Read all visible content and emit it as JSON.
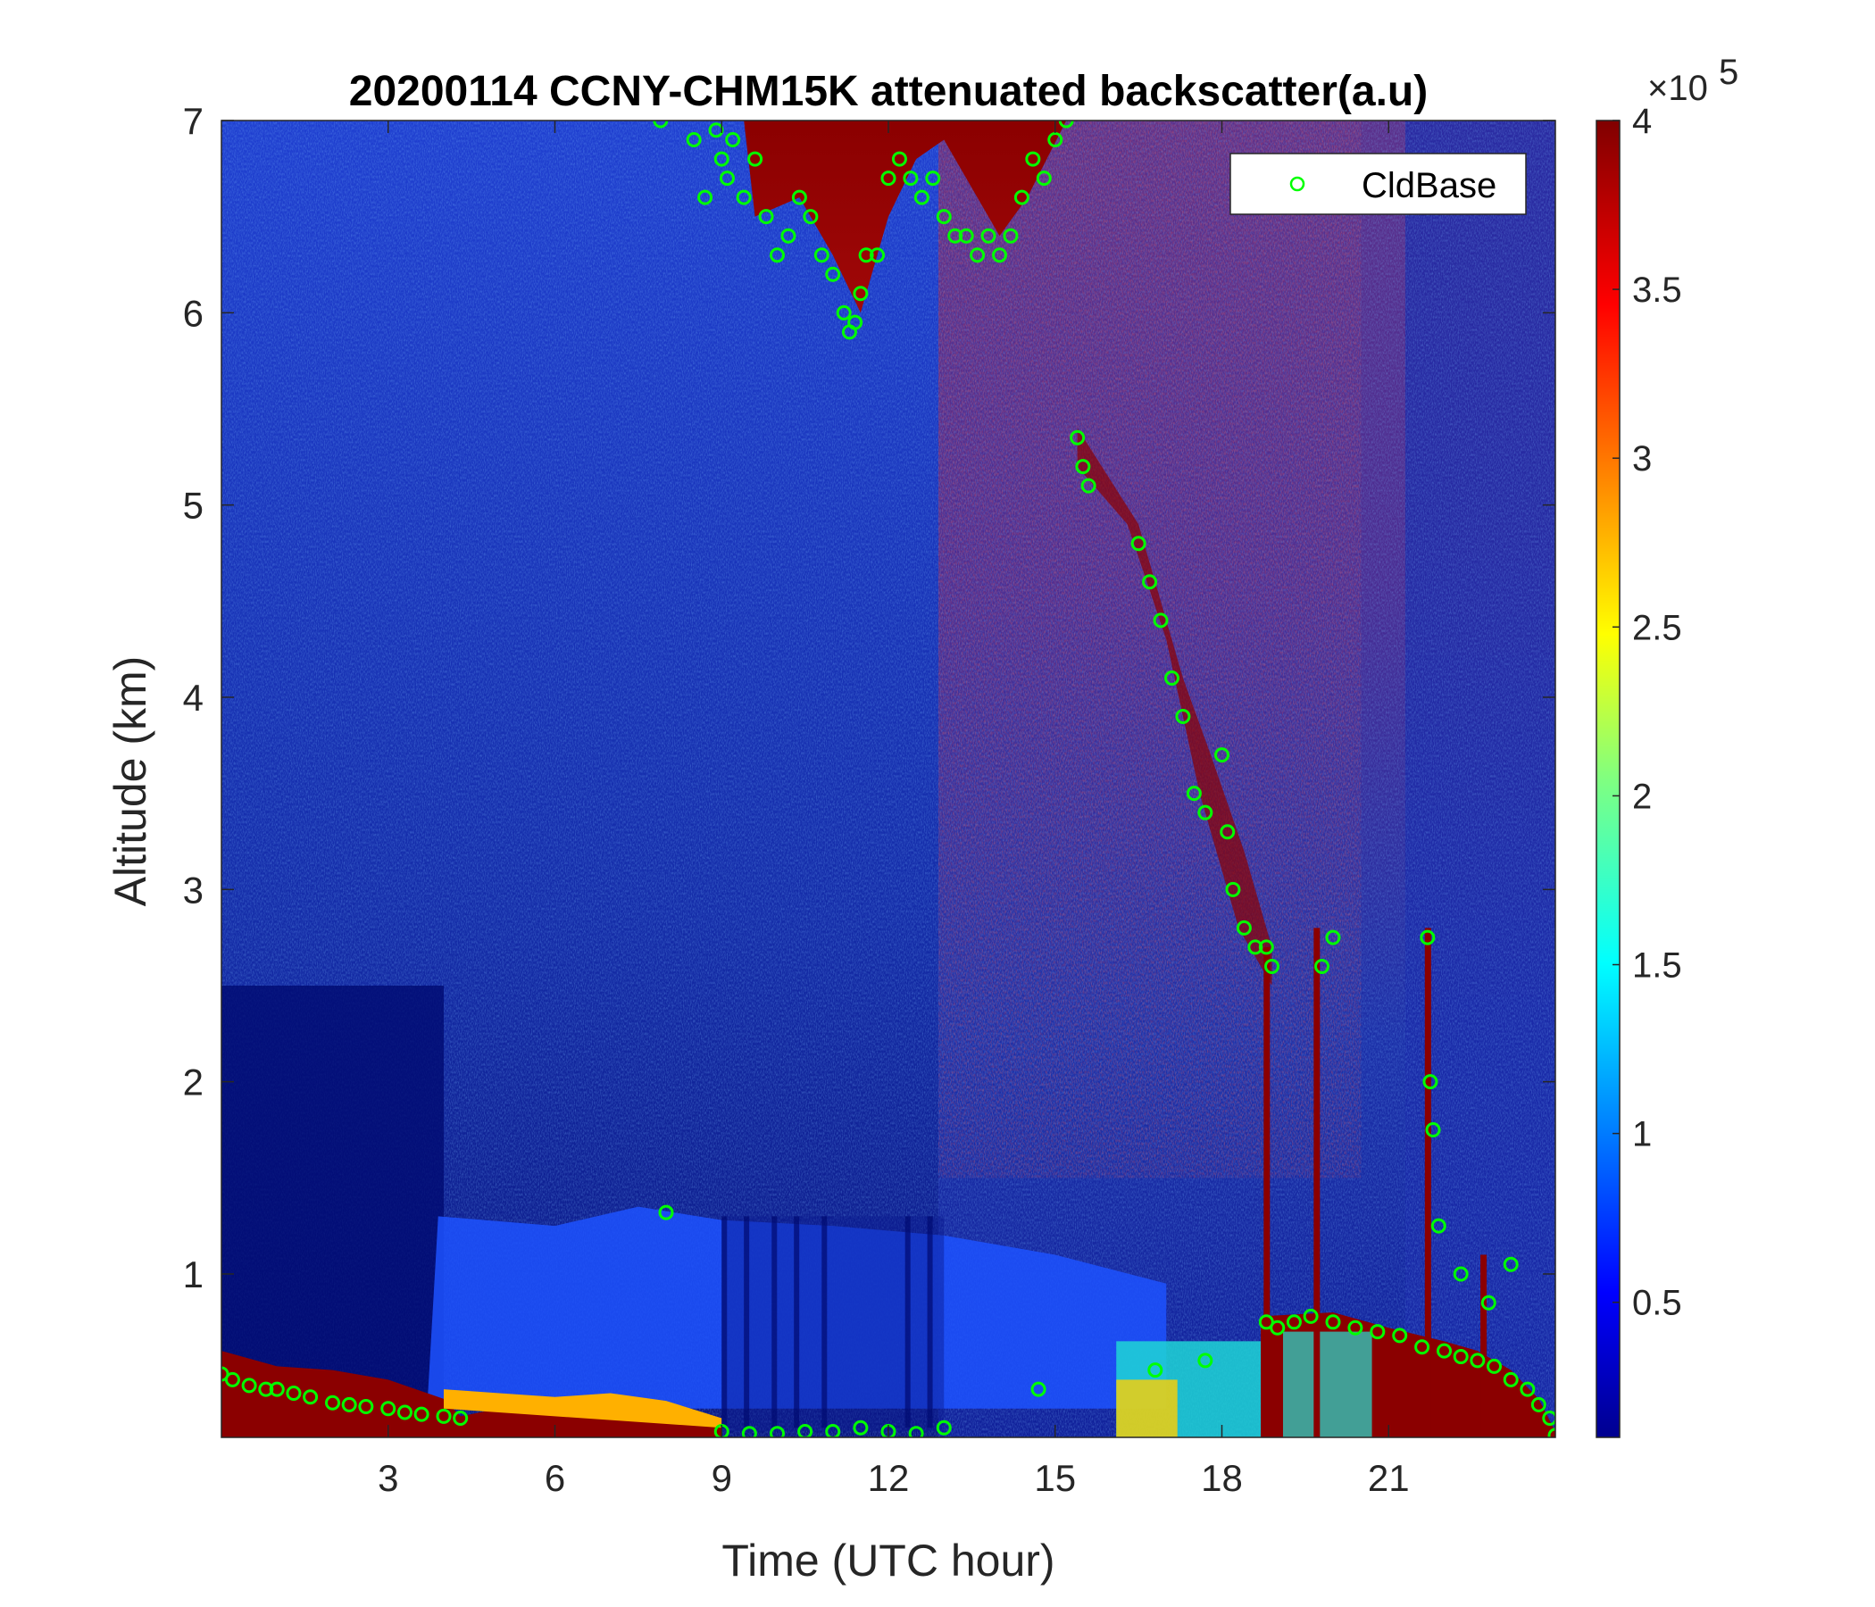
{
  "chart_data": {
    "type": "heatmap",
    "title": "20200114 CCNY-CHM15K attenuated backscatter(a.u)",
    "xlabel": "Time (UTC hour)",
    "ylabel": "Altitude (km)",
    "xlim": [
      0,
      24
    ],
    "ylim": [
      0.15,
      7
    ],
    "xticks": [
      3,
      6,
      9,
      12,
      15,
      18,
      21
    ],
    "yticks": [
      1,
      2,
      3,
      4,
      5,
      6,
      7
    ],
    "colorbar": {
      "colormap": "jet",
      "range": [
        0.1,
        4
      ],
      "ticks": [
        0.5,
        1,
        1.5,
        2,
        2.5,
        3,
        3.5,
        4
      ],
      "tick_labels": [
        "0.5",
        "1",
        "1.5",
        "2",
        "2.5",
        "3",
        "3.5",
        "4"
      ],
      "exponent_base": "×10",
      "exponent_power": "5"
    },
    "legend": {
      "position": "top-right",
      "entries": [
        "CldBase"
      ]
    },
    "series": [
      {
        "name": "CldBase",
        "marker": "circle",
        "color": "#00ff00",
        "x": [
          0.0,
          0.2,
          0.5,
          0.8,
          1.0,
          1.3,
          1.6,
          2.0,
          2.3,
          2.6,
          3.0,
          3.3,
          3.6,
          4.0,
          4.3,
          7.9,
          8.0,
          8.5,
          8.7,
          8.9,
          9.0,
          9.1,
          9.2,
          9.4,
          9.6,
          9.8,
          10.0,
          10.2,
          10.4,
          10.6,
          10.8,
          11.0,
          11.2,
          11.3,
          11.4,
          11.5,
          11.6,
          11.8,
          12.0,
          12.2,
          12.4,
          12.6,
          12.8,
          13.0,
          13.2,
          13.4,
          13.6,
          13.8,
          14.0,
          14.2,
          14.4,
          14.6,
          14.8,
          15.0,
          15.2,
          15.4,
          15.5,
          15.6,
          16.5,
          16.7,
          16.9,
          17.1,
          17.3,
          17.5,
          17.7,
          18.0,
          18.1,
          18.2,
          18.4,
          18.6,
          18.8,
          18.9,
          19.8,
          20.0,
          21.7,
          21.75,
          21.8,
          21.9,
          22.3,
          22.8,
          23.2,
          18.8,
          19.0,
          19.3,
          19.6,
          20.0,
          20.4,
          20.8,
          21.2,
          21.6,
          22.0,
          22.3,
          22.6,
          22.9,
          23.2,
          23.5,
          23.7,
          23.9,
          24.0,
          9.0,
          9.5,
          10.0,
          10.5,
          11.0,
          11.5,
          12.0,
          12.5,
          13.0,
          14.7,
          16.8,
          17.7
        ],
        "y": [
          0.48,
          0.45,
          0.42,
          0.4,
          0.4,
          0.38,
          0.36,
          0.33,
          0.32,
          0.31,
          0.3,
          0.28,
          0.27,
          0.26,
          0.25,
          7.0,
          1.32,
          6.9,
          6.6,
          6.95,
          6.8,
          6.7,
          6.9,
          6.6,
          6.8,
          6.5,
          6.3,
          6.4,
          6.6,
          6.5,
          6.3,
          6.2,
          6.0,
          5.9,
          5.95,
          6.1,
          6.3,
          6.3,
          6.7,
          6.8,
          6.7,
          6.6,
          6.7,
          6.5,
          6.4,
          6.4,
          6.3,
          6.4,
          6.3,
          6.4,
          6.6,
          6.8,
          6.7,
          6.9,
          7.0,
          5.35,
          5.2,
          5.1,
          4.8,
          4.6,
          4.4,
          4.1,
          3.9,
          3.5,
          3.4,
          3.7,
          3.3,
          3.0,
          2.8,
          2.7,
          2.7,
          2.6,
          2.6,
          2.75,
          2.75,
          2.0,
          1.75,
          1.25,
          1.0,
          0.85,
          1.05,
          0.75,
          0.72,
          0.75,
          0.78,
          0.75,
          0.72,
          0.7,
          0.68,
          0.62,
          0.6,
          0.57,
          0.55,
          0.52,
          0.45,
          0.4,
          0.32,
          0.25,
          0.16,
          0.18,
          0.17,
          0.17,
          0.18,
          0.18,
          0.2,
          0.18,
          0.17,
          0.2,
          0.4,
          0.5,
          0.55
        ]
      }
    ]
  }
}
